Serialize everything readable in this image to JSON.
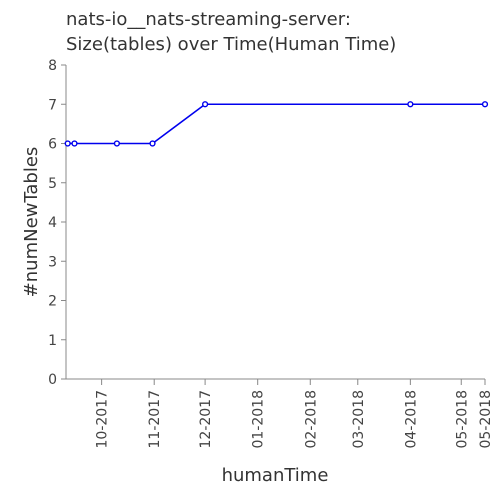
{
  "chart_data": {
    "type": "line",
    "title_lines": [
      "nats-io__nats-streaming-server:",
      "Size(tables) over Time(Human Time)"
    ],
    "xlabel": "humanTime",
    "ylabel": "#numNewTables",
    "x_ticks": [
      "10-2017",
      "11-2017",
      "12-2017",
      "01-2018",
      "02-2018",
      "03-2018",
      "04-2018",
      "05-2018",
      "05-2018"
    ],
    "x_range": [
      "2017-09-10",
      "2018-05-15"
    ],
    "ylim": [
      0,
      8
    ],
    "y_ticks": [
      "0",
      "1",
      "2",
      "3",
      "4",
      "5",
      "6",
      "7",
      "8"
    ],
    "grid": false,
    "series": [
      {
        "color": "#0000ee",
        "points": [
          {
            "x": "2017-09-11",
            "y": 6
          },
          {
            "x": "2017-09-15",
            "y": 6
          },
          {
            "x": "2017-10-10",
            "y": 6
          },
          {
            "x": "2017-10-31",
            "y": 6
          },
          {
            "x": "2017-12-01",
            "y": 7
          },
          {
            "x": "2018-04-01",
            "y": 7
          },
          {
            "x": "2018-05-15",
            "y": 7
          }
        ]
      }
    ]
  }
}
